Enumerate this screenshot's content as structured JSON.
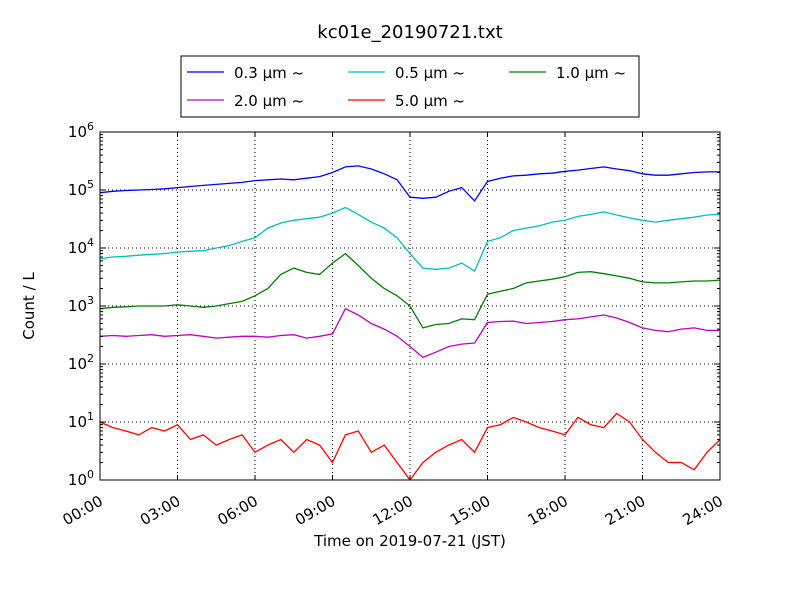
{
  "chart_data": {
    "type": "line",
    "title": "kc01e_20190721.txt",
    "xlabel": "Time on 2019-07-21 (JST)",
    "ylabel": "Count / L",
    "yscale": "log",
    "ylim": [
      1,
      1000000
    ],
    "xlim": [
      "2019-07-21 00:00",
      "2019-07-22 00:00"
    ],
    "grid": true,
    "legend_position": "top-center",
    "x_ticks": [
      "00:00",
      "03:00",
      "06:00",
      "09:00",
      "12:00",
      "15:00",
      "18:00",
      "21:00",
      "24:00"
    ],
    "y_ticks": [
      {
        "base": "10",
        "exp": "0"
      },
      {
        "base": "10",
        "exp": "1"
      },
      {
        "base": "10",
        "exp": "2"
      },
      {
        "base": "10",
        "exp": "3"
      },
      {
        "base": "10",
        "exp": "4"
      },
      {
        "base": "10",
        "exp": "5"
      },
      {
        "base": "10",
        "exp": "6"
      }
    ],
    "x": [
      "00:00",
      "00:30",
      "01:00",
      "01:30",
      "02:00",
      "02:30",
      "03:00",
      "03:30",
      "04:00",
      "04:30",
      "05:00",
      "05:30",
      "06:00",
      "06:30",
      "07:00",
      "07:30",
      "08:00",
      "08:30",
      "09:00",
      "09:30",
      "10:00",
      "10:30",
      "11:00",
      "11:30",
      "12:00",
      "12:30",
      "13:00",
      "13:30",
      "14:00",
      "14:30",
      "15:00",
      "15:30",
      "16:00",
      "16:30",
      "17:00",
      "17:30",
      "18:00",
      "18:30",
      "19:00",
      "19:30",
      "20:00",
      "20:30",
      "21:00",
      "21:30",
      "22:00",
      "22:30",
      "23:00",
      "23:30",
      "24:00"
    ],
    "series": [
      {
        "name": "0.3 μm ~",
        "color": "#0000ff",
        "values": [
          90000,
          95000,
          98000,
          100000,
          102000,
          105000,
          110000,
          115000,
          120000,
          125000,
          130000,
          135000,
          145000,
          150000,
          155000,
          150000,
          160000,
          170000,
          200000,
          250000,
          260000,
          230000,
          190000,
          150000,
          75000,
          72000,
          75000,
          95000,
          110000,
          65000,
          140000,
          160000,
          175000,
          180000,
          190000,
          195000,
          210000,
          220000,
          235000,
          250000,
          230000,
          215000,
          190000,
          180000,
          180000,
          190000,
          200000,
          205000,
          205000
        ]
      },
      {
        "name": "0.5 μm ~",
        "color": "#00bfbf",
        "values": [
          6500,
          7000,
          7200,
          7500,
          7800,
          8000,
          8500,
          8800,
          9000,
          10000,
          11000,
          13000,
          15000,
          22000,
          27000,
          30000,
          32000,
          34000,
          40000,
          50000,
          38000,
          28000,
          22000,
          15000,
          8000,
          4500,
          4300,
          4500,
          5500,
          4000,
          13000,
          15000,
          20000,
          22000,
          24000,
          28000,
          30000,
          35000,
          38000,
          42000,
          37000,
          33000,
          30000,
          28000,
          30000,
          32000,
          34000,
          37000,
          38000
        ]
      },
      {
        "name": "1.0 μm ~",
        "color": "#008000",
        "values": [
          900,
          950,
          970,
          1000,
          1000,
          1000,
          1050,
          1000,
          950,
          1000,
          1100,
          1200,
          1500,
          2000,
          3500,
          4500,
          3800,
          3500,
          5500,
          8000,
          5000,
          3000,
          2000,
          1500,
          1000,
          420,
          480,
          500,
          600,
          580,
          1600,
          1800,
          2000,
          2500,
          2700,
          2900,
          3200,
          3800,
          3900,
          3600,
          3300,
          3000,
          2600,
          2500,
          2500,
          2600,
          2700,
          2700,
          2800
        ]
      },
      {
        "name": "2.0 μm ~",
        "color": "#bf00bf",
        "values": [
          300,
          310,
          300,
          310,
          320,
          300,
          310,
          320,
          300,
          280,
          290,
          300,
          300,
          290,
          310,
          320,
          280,
          300,
          330,
          900,
          700,
          500,
          400,
          300,
          200,
          130,
          160,
          200,
          220,
          230,
          520,
          540,
          550,
          500,
          520,
          540,
          580,
          600,
          650,
          700,
          620,
          520,
          420,
          380,
          360,
          400,
          420,
          380,
          380
        ]
      },
      {
        "name": "5.0 μm ~",
        "color": "#ff0000",
        "values": [
          10,
          8,
          7,
          6,
          8,
          7,
          9,
          5,
          6,
          4,
          5,
          6,
          3,
          4,
          5,
          3,
          5,
          4,
          2,
          6,
          7,
          3,
          4,
          2,
          1,
          2,
          3,
          4,
          5,
          3,
          8,
          9,
          12,
          10,
          8,
          7,
          6,
          12,
          9,
          8,
          14,
          10,
          5,
          3,
          2,
          2,
          1.5,
          3,
          5
        ]
      }
    ]
  }
}
